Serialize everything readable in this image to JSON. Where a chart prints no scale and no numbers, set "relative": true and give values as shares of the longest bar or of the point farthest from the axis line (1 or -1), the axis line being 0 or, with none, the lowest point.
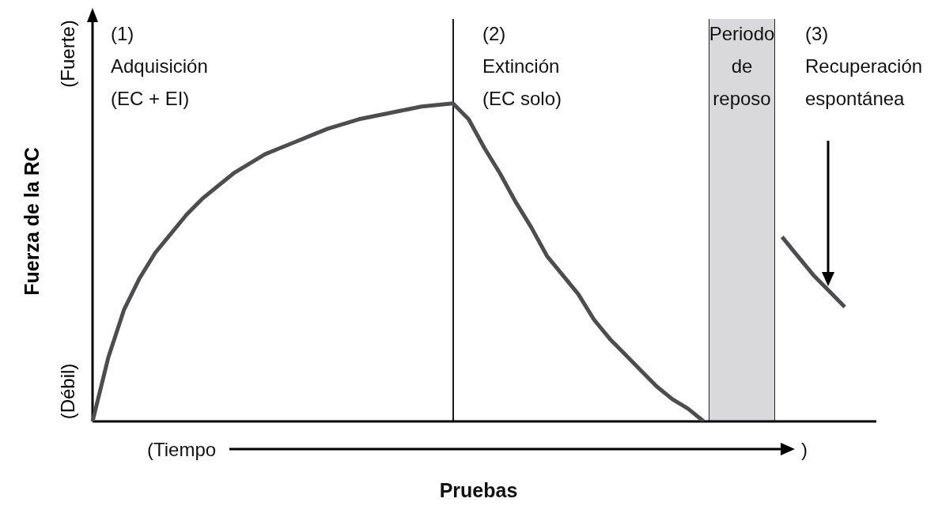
{
  "chart_data": {
    "type": "line",
    "relative": true,
    "marker": "none",
    "ylabel": "Fuerza de la RC",
    "xlabel": "Pruebas",
    "categories": [
      null,
      null,
      null,
      null,
      null,
      null,
      null,
      null,
      null,
      null,
      null,
      null,
      null,
      null,
      null,
      null,
      null,
      null,
      null,
      null,
      null,
      null,
      null,
      null,
      null,
      null,
      null,
      null,
      null,
      null,
      null,
      null,
      null,
      null,
      null,
      null,
      null,
      null,
      null,
      null,
      null,
      null,
      null,
      null,
      null,
      null,
      null,
      null,
      null
    ],
    "series": [
      {
        "color": "#4d4d4f",
        "values": [
          0,
          0.2,
          0.35,
          0.45,
          0.53,
          0.59,
          0.65,
          0.7,
          0.74,
          0.78,
          0.81,
          0.84,
          0.86,
          0.88,
          0.9,
          0.92,
          0.935,
          0.95,
          0.96,
          0.97,
          0.98,
          0.99,
          0.995,
          1,
          0.95,
          0.86,
          0.78,
          0.69,
          0.61,
          0.52,
          0.46,
          0.4,
          0.32,
          0.26,
          0.21,
          0.16,
          0.11,
          0.07,
          0.04,
          0,
          null,
          null,
          null,
          null,
          null,
          null,
          null,
          null,
          null
        ]
      },
      {
        "color": "#4d4d4f",
        "values": [
          null,
          null,
          null,
          null,
          null,
          null,
          null,
          null,
          null,
          null,
          null,
          null,
          null,
          null,
          null,
          null,
          null,
          null,
          null,
          null,
          null,
          null,
          null,
          null,
          null,
          null,
          null,
          null,
          null,
          null,
          null,
          null,
          null,
          null,
          null,
          null,
          null,
          null,
          null,
          null,
          null,
          null,
          null,
          null,
          0.58,
          0.52,
          0.46,
          0.41,
          0.36
        ]
      }
    ],
    "annotations": [
      "(1)\nAdquisición\n(EC + EI)",
      "(2)\nExtinción\n(EC solo)",
      "(3)\nRecuperación\nespontánea",
      "(Fuerte)",
      "(Débil)",
      "(Tiempo",
      ")",
      "Periodo\nde\nreposo"
    ]
  }
}
